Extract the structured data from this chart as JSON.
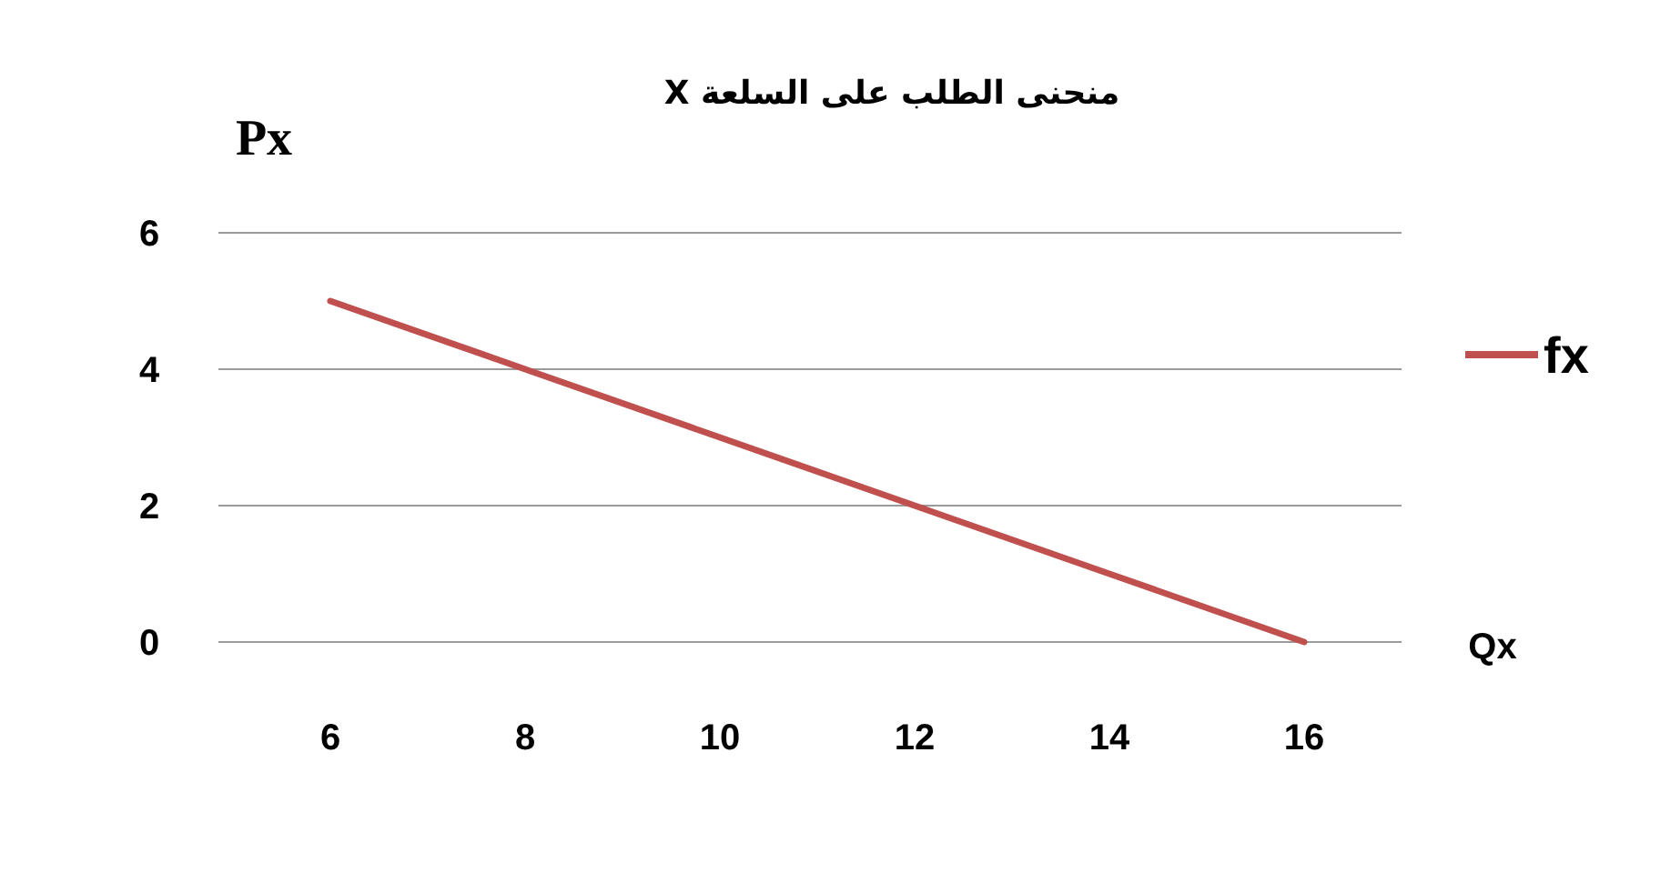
{
  "chart_data": {
    "type": "line",
    "title": "منحنى الطلب على السلعة X",
    "xlabel": "Qx",
    "ylabel": "Px",
    "categories": [
      "6",
      "8",
      "10",
      "12",
      "14",
      "16"
    ],
    "series": [
      {
        "name": "fx",
        "color": "#c0504d",
        "values": [
          5,
          4,
          3,
          2,
          1,
          0
        ]
      }
    ],
    "ylim": [
      0,
      6
    ],
    "yticks": [
      0,
      2,
      4,
      6
    ],
    "grid": "y",
    "legend": "right",
    "marker": "none",
    "line_style": "solid"
  }
}
